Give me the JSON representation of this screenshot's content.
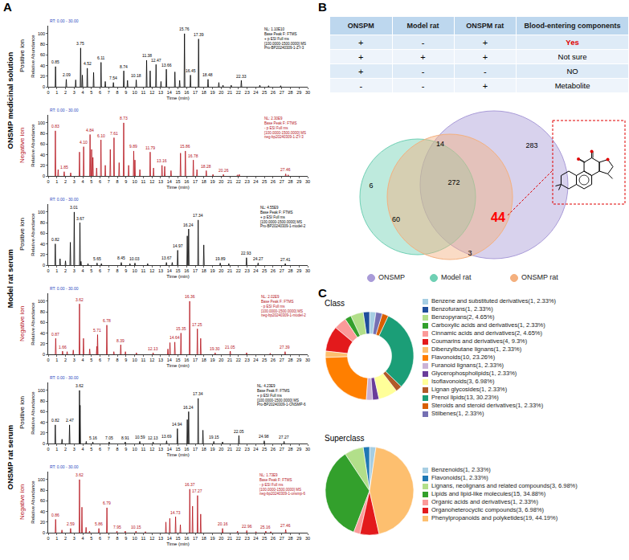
{
  "panel_letters": [
    "A",
    "B",
    "C"
  ],
  "chart_data": [
    {
      "type": "line",
      "group": "ONSMP medicinal solution",
      "ion": "Positive ion",
      "color": "#000000",
      "grid": false,
      "header": "RT: 0.00 - 30.00",
      "info": [
        "NL: 1.10E10",
        "Base Peak F: FTMS",
        "+ p ESI Full ms",
        "[100.0000-1500.0000] MS",
        "Pro-BP20240309-1-ZY-3"
      ],
      "x_label": "Time (min)",
      "y_label": "Relative Abundance",
      "xlim": [
        0,
        30
      ],
      "xticks": [
        0,
        1,
        2,
        3,
        4,
        5,
        6,
        7,
        8,
        9,
        10,
        11,
        12,
        13,
        14,
        15,
        16,
        17,
        18,
        19,
        20,
        21,
        22,
        23,
        24,
        25,
        26,
        27,
        28,
        29,
        30
      ],
      "ylim": [
        0,
        115
      ],
      "yticks": [
        0,
        20,
        40,
        60,
        80,
        100
      ],
      "x": [
        0.85,
        2.09,
        3.18,
        3.75,
        3.95,
        4.52,
        5.25,
        6.11,
        6.6,
        7.54,
        8.74,
        9.17,
        10.18,
        11.38,
        11.79,
        12.47,
        13.04,
        13.66,
        14.65,
        15.2,
        15.76,
        16.45,
        17.39,
        18.48,
        19.73,
        20.21,
        21.16,
        22.33,
        24.47,
        25.48,
        26.88
      ],
      "values": [
        38,
        14,
        13,
        73,
        22,
        35,
        27,
        46,
        10,
        8,
        30,
        12,
        13,
        50,
        30,
        42,
        10,
        33,
        28,
        12,
        100,
        22,
        90,
        14,
        8,
        3,
        3,
        12,
        3,
        2,
        2
      ],
      "peak_labels": [
        "0.85",
        "2.09",
        null,
        "3.75",
        null,
        "4.52",
        null,
        "6.11",
        null,
        "7.54",
        "8.74",
        null,
        "10.18",
        "11.38",
        null,
        "12.47",
        null,
        "13.66",
        null,
        null,
        "15.76",
        "16.45",
        "17.39",
        "18.48",
        null,
        null,
        null,
        "22.33",
        null,
        null,
        null
      ]
    },
    {
      "type": "line",
      "group": "ONSMP medicinal solution",
      "ion": "Negative ion",
      "color": "#b5121b",
      "grid": false,
      "header": "RT: 0.00 - 30.00",
      "info": [
        "NL: 2.30E9",
        "Base Peak F: FTMS",
        "- p ESI Full ms",
        "[100.0000-1500.0000] MS",
        "neg-bp20240309-1-ZY-3"
      ],
      "x_label": "Time (min)",
      "y_label": "Relative Abundance",
      "xlim": [
        0,
        30
      ],
      "xticks": [
        0,
        1,
        2,
        3,
        4,
        5,
        6,
        7,
        8,
        9,
        10,
        11,
        12,
        13,
        14,
        15,
        16,
        17,
        18,
        19,
        20,
        21,
        22,
        23,
        24,
        25,
        26,
        27,
        28,
        29,
        30
      ],
      "ylim": [
        0,
        115
      ],
      "yticks": [
        0,
        20,
        40,
        60,
        80,
        100
      ],
      "x": [
        0.83,
        1.15,
        1.85,
        2.6,
        3.62,
        4.1,
        4.84,
        5.02,
        5.17,
        5.6,
        6.1,
        6.6,
        7.18,
        7.61,
        8.2,
        8.73,
        9.3,
        9.89,
        10.03,
        10.6,
        11.79,
        12.18,
        13.16,
        13.47,
        14.2,
        15.3,
        15.86,
        16.78,
        17.2,
        18.28,
        19.05,
        20.26,
        21.88,
        22.09,
        27.46,
        27.75
      ],
      "values": [
        85,
        12,
        8,
        6,
        45,
        55,
        78,
        50,
        35,
        15,
        68,
        20,
        50,
        72,
        25,
        100,
        20,
        47,
        30,
        12,
        45,
        15,
        20,
        18,
        10,
        43,
        47,
        30,
        12,
        10,
        3,
        3,
        2,
        3,
        4,
        2
      ],
      "peak_labels": [
        "0.83",
        null,
        "1.85",
        null,
        null,
        "4.10",
        "4.84",
        null,
        null,
        null,
        "6.10",
        null,
        null,
        "7.61",
        null,
        "8.73",
        null,
        "9.89",
        null,
        null,
        "11.79",
        null,
        "13.16",
        null,
        null,
        null,
        "15.86",
        "16.78",
        null,
        "18.28",
        null,
        "20.26",
        null,
        null,
        "27.46",
        null
      ]
    },
    {
      "type": "line",
      "group": "Model rat serum",
      "ion": "Positive ion",
      "color": "#000000",
      "grid": false,
      "header": "RT: 0.00 - 30.00",
      "info": [
        "NL: 4.55E9",
        "Base Peak F: FTMS",
        "+ p ESI Full ms",
        "[100.0000-1500.0000] MS",
        "Pro-BP20240309-1-model-2"
      ],
      "x_label": "Time (min)",
      "y_label": "Relative Abundance",
      "xlim": [
        0,
        30
      ],
      "xticks": [
        0,
        1,
        2,
        3,
        4,
        5,
        6,
        7,
        8,
        9,
        10,
        11,
        12,
        13,
        14,
        15,
        16,
        17,
        18,
        19,
        20,
        21,
        22,
        23,
        24,
        25,
        26,
        27,
        28,
        29,
        30
      ],
      "ylim": [
        0,
        115
      ],
      "yticks": [
        0,
        20,
        40,
        60,
        80,
        100
      ],
      "x": [
        0.82,
        1.37,
        2.0,
        2.56,
        3.01,
        3.67,
        3.79,
        4.6,
        5.65,
        6.15,
        8.45,
        9.45,
        10.03,
        11.5,
        13.67,
        14.34,
        14.97,
        16.08,
        16.24,
        17.34,
        17.99,
        19.89,
        20.88,
        22.93,
        24.27,
        27.41
      ],
      "values": [
        40,
        12,
        8,
        43,
        100,
        80,
        7,
        3,
        4,
        3,
        5,
        3,
        4,
        3,
        5,
        5,
        28,
        55,
        68,
        85,
        38,
        4,
        3,
        14,
        4,
        3
      ],
      "peak_labels": [
        "0.82",
        null,
        null,
        null,
        "3.01",
        "3.67",
        null,
        null,
        "5.65",
        null,
        "8.45",
        null,
        "10.03",
        null,
        "13.67",
        null,
        "14.97",
        null,
        "16.24",
        "17.34",
        null,
        "19.89",
        null,
        "22.93",
        "24.27",
        "27.41"
      ]
    },
    {
      "type": "line",
      "group": "Model rat serum",
      "ion": "Negative ion",
      "color": "#b5121b",
      "grid": false,
      "header": "RT: 0.00 - 30.00",
      "info": [
        "NL: 2.02E9",
        "Base Peak F: FTMS",
        "- p ESI Full ms",
        "[100.0000-1500.0000] MS",
        "neg-bp20240309-1-model-2"
      ],
      "x_label": "Time (min)",
      "y_label": "Relative Abundance",
      "xlim": [
        0,
        30
      ],
      "xticks": [
        0,
        1,
        2,
        3,
        4,
        5,
        6,
        7,
        8,
        9,
        10,
        11,
        12,
        13,
        14,
        15,
        16,
        17,
        18,
        19,
        20,
        21,
        22,
        23,
        24,
        25,
        26,
        27,
        28,
        29,
        30
      ],
      "ylim": [
        0,
        115
      ],
      "yticks": [
        0,
        20,
        40,
        60,
        80,
        100
      ],
      "x": [
        0.87,
        1.66,
        2.19,
        2.9,
        3.62,
        4.08,
        4.8,
        5.62,
        5.71,
        6.78,
        7.59,
        8.39,
        8.93,
        10.2,
        12.13,
        13.84,
        14.08,
        14.64,
        15.35,
        16.36,
        17.25,
        17.63,
        19.3,
        21.05,
        22.94,
        25.67,
        27.39
      ],
      "values": [
        30,
        6,
        5,
        8,
        95,
        30,
        10,
        15,
        37,
        55,
        5,
        18,
        5,
        3,
        3,
        10,
        22,
        23,
        40,
        100,
        48,
        30,
        3,
        6,
        3,
        2,
        5
      ],
      "peak_labels": [
        "0.87",
        "1.66",
        null,
        null,
        "3.62",
        null,
        null,
        null,
        "5.71",
        "6.78",
        null,
        "8.39",
        null,
        null,
        "12.13",
        null,
        null,
        "14.64",
        "15.35",
        "16.36",
        "17.25",
        null,
        "19.30",
        "21.05",
        null,
        null,
        "27.39"
      ]
    },
    {
      "type": "line",
      "group": "ONSMP rat serum",
      "ion": "Positive ion",
      "color": "#000000",
      "grid": false,
      "header": "RT: 0.00 - 30.00",
      "info": [
        "NL: 4.23E9",
        "Base Peak F: FTMS",
        "+ p ESI Full ms",
        "[100.0000-1500.0000] MS",
        "Pro-BP20240309-1-ONSMP-6"
      ],
      "x_label": "Time (min)",
      "y_label": "Relative Abundance",
      "xlim": [
        0,
        30
      ],
      "xticks": [
        0,
        1,
        2,
        3,
        4,
        5,
        6,
        7,
        8,
        9,
        10,
        11,
        12,
        13,
        14,
        15,
        16,
        17,
        18,
        19,
        20,
        21,
        22,
        23,
        24,
        25,
        26,
        27,
        28,
        29,
        30
      ],
      "ylim": [
        0,
        115
      ],
      "yticks": [
        0,
        20,
        40,
        60,
        80,
        100
      ],
      "x": [
        0.82,
        1.6,
        2.47,
        3.62,
        3.69,
        4.4,
        5.16,
        7.05,
        8.91,
        10.59,
        12.13,
        13.69,
        14.94,
        16.08,
        16.24,
        17.34,
        17.89,
        19.15,
        20.16,
        22.05,
        24.98,
        27.27
      ],
      "values": [
        35,
        8,
        35,
        100,
        72,
        4,
        3,
        3,
        3,
        4,
        3,
        5,
        28,
        45,
        60,
        85,
        25,
        4,
        3,
        15,
        5,
        4
      ],
      "peak_labels": [
        "0.82",
        null,
        "2.47",
        "3.62",
        null,
        null,
        "5.16",
        "7.05",
        "8.91",
        "10.59",
        "12.13",
        "13.69",
        "14.94",
        null,
        "16.24",
        "17.34",
        null,
        "19.15",
        null,
        "22.05",
        "24.98",
        "27.27"
      ]
    },
    {
      "type": "line",
      "group": "ONSMP rat serum",
      "ion": "Negative ion",
      "color": "#b5121b",
      "grid": false,
      "header": "RT: 0.00 - 30.00",
      "info": [
        "NL: 1.73E9",
        "Base Peak F: FTMS",
        "- p ESI Full ms",
        "[100.0000-1500.0000] MS",
        "neg-bp20240309-1-onsmp-6"
      ],
      "x_label": "Time (min)",
      "y_label": "Relative Abundance",
      "xlim": [
        0,
        30
      ],
      "xticks": [
        0,
        1,
        2,
        3,
        4,
        5,
        6,
        7,
        8,
        9,
        10,
        11,
        12,
        13,
        14,
        15,
        16,
        17,
        18,
        19,
        20,
        21,
        22,
        23,
        24,
        25,
        26,
        27,
        28,
        29,
        30
      ],
      "ylim": [
        0,
        115
      ],
      "yticks": [
        0,
        20,
        40,
        60,
        80,
        100
      ],
      "x": [
        0.86,
        1.59,
        2.59,
        3.62,
        3.9,
        4.38,
        4.78,
        5.86,
        6.79,
        7.95,
        8.91,
        10.15,
        11.24,
        13.61,
        14.06,
        14.73,
        15.28,
        16.37,
        16.69,
        17.27,
        17.63,
        20.16,
        21.89,
        22.96,
        24.02,
        25.16,
        25.73,
        27.46
      ],
      "values": [
        25,
        5,
        8,
        100,
        48,
        10,
        3,
        8,
        47,
        3,
        3,
        3,
        2,
        20,
        27,
        30,
        15,
        82,
        50,
        70,
        35,
        8,
        3,
        4,
        2,
        3,
        2,
        6
      ],
      "peak_labels": [
        "0.86",
        null,
        "2.59",
        "3.62",
        null,
        null,
        null,
        "5.86",
        "6.79",
        "7.95",
        null,
        "10.15",
        null,
        null,
        null,
        "14.73",
        null,
        "16.37",
        null,
        "17.27",
        null,
        "20.16",
        null,
        "22.96",
        null,
        "25.16",
        null,
        "27.46"
      ]
    },
    {
      "type": "donut",
      "title": "Class",
      "legend": "right",
      "categories": [
        "Benzene and substituted derivatives(1, 2.33%)",
        "Benzofurans(1, 2.33%)",
        "Benzopyrans(2, 4.65%)",
        "Carboxylic acids and derivatives(1, 2.33%)",
        "Cinnamic acids and derivatives(2, 4.65%)",
        "Coumarins and derivatives(4, 9.3%)",
        "Dibenzylbutane lignans(1, 2.33%)",
        "Flavonoids(10, 23.26%)",
        "Furanoid lignans(1, 2.33%)",
        "Glycerophospholipids(1, 2.33%)",
        "Isoflavonoids(3, 6.98%)",
        "Lignan glycosides(1, 2.33%)",
        "Prenol lipids(13, 30.23%)",
        "Steroids and steroid derivatives(1, 2.33%)",
        "Stilbenes(1, 2.33%)"
      ],
      "values": [
        1,
        1,
        2,
        1,
        2,
        4,
        1,
        10,
        1,
        1,
        3,
        1,
        13,
        1,
        1
      ],
      "colors": [
        "#a6cee3",
        "#1f4e9c",
        "#b2df8a",
        "#33a02c",
        "#fb9a99",
        "#e31a1c",
        "#fdbf6f",
        "#ff7f00",
        "#cab2d6",
        "#6a3d9a",
        "#ffff99",
        "#b15928",
        "#1b9e77",
        "#d95f02",
        "#7570b3"
      ]
    },
    {
      "type": "pie",
      "title": "Superclass",
      "legend": "right",
      "categories": [
        "Benzenoids(1, 2.33%)",
        "Flavonoids(1, 2.33%)",
        "Lignans, neolignans and related compounds(3, 6.98%)",
        "Lipids and lipid-like molecules(15, 34.88%)",
        "Organic acids and derivatives(1, 2.33%)",
        "Organoheterocyclic compounds(3, 6.98%)",
        "Phenylpropanoids and polyketides(19, 44.19%)"
      ],
      "values": [
        1,
        1,
        3,
        15,
        1,
        3,
        19
      ],
      "colors": [
        "#a6cee3",
        "#1f78b4",
        "#b2df8a",
        "#33a02c",
        "#fb9a99",
        "#e31a1c",
        "#fdbf6f"
      ]
    }
  ],
  "table": {
    "header": [
      "ONSPM",
      "Model rat",
      "ONSPM rat",
      "Blood-entering components"
    ],
    "rows": [
      {
        "cells": [
          "+",
          "-",
          "+",
          "Yes"
        ],
        "color": "#e00000"
      },
      {
        "cells": [
          "+",
          "+",
          "+",
          "Not sure"
        ],
        "color": "#000000"
      },
      {
        "cells": [
          "+",
          "-",
          "-",
          "NO"
        ],
        "color": "#000000"
      },
      {
        "cells": [
          "-",
          "-",
          "+",
          "Metabolite"
        ],
        "color": "#000000"
      }
    ]
  },
  "venn": {
    "sets": [
      {
        "name": "ONSMP",
        "color": "#a99bd8"
      },
      {
        "name": "Model rat",
        "color": "#6fd0b4"
      },
      {
        "name": "ONSMP rat",
        "color": "#f4b07e"
      }
    ],
    "regions": [
      {
        "sets": [
          "ONSMP"
        ],
        "value": 283,
        "color": "#000000"
      },
      {
        "sets": [
          "ONSMP",
          "Model rat",
          "ONSMP rat"
        ],
        "value": 272,
        "color": "#000000"
      },
      {
        "sets": [
          "Model rat",
          "ONSMP rat"
        ],
        "value": 60,
        "color": "#000000"
      },
      {
        "sets": [
          "ONSMP",
          "ONSMP rat"
        ],
        "value": 44,
        "color": "#ff0000"
      },
      {
        "sets": [
          "Model rat"
        ],
        "value": 6,
        "color": "#000000"
      },
      {
        "sets": [
          "ONSMP",
          "Model rat"
        ],
        "value": 14,
        "color": "#000000"
      },
      {
        "sets": [
          "ONSMP rat"
        ],
        "value": 3,
        "color": "#000000"
      }
    ]
  }
}
